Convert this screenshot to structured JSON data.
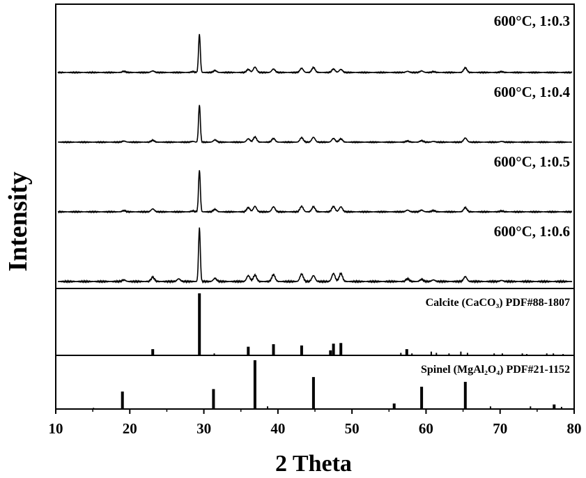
{
  "chart_data": {
    "type": "line",
    "title": "",
    "xlabel": "2 Theta",
    "ylabel": "Intensity",
    "xlim": [
      10,
      80
    ],
    "x_ticks": [
      10,
      20,
      30,
      40,
      50,
      60,
      70,
      80
    ],
    "y_ticks_shown": false,
    "grid": false,
    "legend": "none",
    "colors": {
      "line": "#000000",
      "background": "#ffffff"
    },
    "series": [
      {
        "name": "600°C, 1:0.3",
        "baseline": 0.06,
        "peaks": [
          [
            19.2,
            0.03
          ],
          [
            23.1,
            0.04
          ],
          [
            28.5,
            0.02
          ],
          [
            29.4,
            1.0
          ],
          [
            31.5,
            0.05
          ],
          [
            36.0,
            0.08
          ],
          [
            36.9,
            0.14
          ],
          [
            39.4,
            0.09
          ],
          [
            43.2,
            0.11
          ],
          [
            44.8,
            0.13
          ],
          [
            47.5,
            0.09
          ],
          [
            48.5,
            0.08
          ],
          [
            57.5,
            0.03
          ],
          [
            59.4,
            0.04
          ],
          [
            61.0,
            0.02
          ],
          [
            65.3,
            0.12
          ],
          [
            70.2,
            0.02
          ]
        ]
      },
      {
        "name": "600°C, 1:0.4",
        "baseline": 0.06,
        "peaks": [
          [
            19.2,
            0.03
          ],
          [
            23.1,
            0.05
          ],
          [
            28.5,
            0.02
          ],
          [
            29.4,
            1.0
          ],
          [
            31.5,
            0.06
          ],
          [
            36.0,
            0.09
          ],
          [
            36.9,
            0.14
          ],
          [
            39.4,
            0.1
          ],
          [
            43.2,
            0.12
          ],
          [
            44.8,
            0.13
          ],
          [
            47.5,
            0.1
          ],
          [
            48.5,
            0.09
          ],
          [
            57.5,
            0.03
          ],
          [
            59.4,
            0.04
          ],
          [
            61.0,
            0.02
          ],
          [
            65.3,
            0.11
          ],
          [
            70.2,
            0.02
          ]
        ]
      },
      {
        "name": "600°C, 1:0.5",
        "baseline": 0.06,
        "peaks": [
          [
            19.2,
            0.03
          ],
          [
            23.1,
            0.07
          ],
          [
            28.5,
            0.02
          ],
          [
            29.4,
            1.0
          ],
          [
            31.5,
            0.06
          ],
          [
            36.0,
            0.1
          ],
          [
            36.9,
            0.13
          ],
          [
            39.4,
            0.12
          ],
          [
            43.2,
            0.13
          ],
          [
            44.8,
            0.12
          ],
          [
            47.5,
            0.13
          ],
          [
            48.5,
            0.12
          ],
          [
            57.5,
            0.04
          ],
          [
            59.4,
            0.04
          ],
          [
            61.0,
            0.03
          ],
          [
            65.3,
            0.1
          ],
          [
            70.2,
            0.02
          ]
        ]
      },
      {
        "name": "600°C, 1:0.6",
        "baseline": 0.06,
        "peaks": [
          [
            19.2,
            0.03
          ],
          [
            23.1,
            0.08
          ],
          [
            26.6,
            0.05
          ],
          [
            29.4,
            1.0
          ],
          [
            31.5,
            0.06
          ],
          [
            36.0,
            0.11
          ],
          [
            36.9,
            0.12
          ],
          [
            39.4,
            0.13
          ],
          [
            43.2,
            0.14
          ],
          [
            44.8,
            0.11
          ],
          [
            47.5,
            0.15
          ],
          [
            48.5,
            0.15
          ],
          [
            57.5,
            0.05
          ],
          [
            59.4,
            0.04
          ],
          [
            61.0,
            0.03
          ],
          [
            65.3,
            0.09
          ],
          [
            70.2,
            0.02
          ]
        ]
      }
    ],
    "references": [
      {
        "name": "Calcite (CaCO₃) PDF#88-1807",
        "sticks": [
          [
            23.1,
            9
          ],
          [
            29.4,
            100
          ],
          [
            31.4,
            2
          ],
          [
            36.0,
            13
          ],
          [
            39.4,
            17
          ],
          [
            43.2,
            15
          ],
          [
            47.1,
            7
          ],
          [
            47.5,
            18
          ],
          [
            48.5,
            19
          ],
          [
            56.6,
            3
          ],
          [
            57.4,
            9
          ],
          [
            58.1,
            2
          ],
          [
            60.7,
            5
          ],
          [
            61.4,
            3
          ],
          [
            63.1,
            2
          ],
          [
            64.7,
            5
          ],
          [
            65.6,
            3
          ],
          [
            69.2,
            2
          ],
          [
            70.3,
            2
          ],
          [
            73.0,
            2
          ],
          [
            73.6,
            1
          ],
          [
            76.3,
            2
          ],
          [
            77.2,
            2
          ],
          [
            78.5,
            1
          ]
        ]
      },
      {
        "name": "Spinel (MgAl₂O₄) PDF#21-1152",
        "sticks": [
          [
            15.1,
            1
          ],
          [
            19.0,
            35
          ],
          [
            31.3,
            40
          ],
          [
            36.9,
            100
          ],
          [
            38.6,
            4
          ],
          [
            44.8,
            65
          ],
          [
            55.7,
            10
          ],
          [
            59.4,
            45
          ],
          [
            65.3,
            55
          ],
          [
            68.7,
            4
          ],
          [
            74.1,
            4
          ],
          [
            77.3,
            8
          ],
          [
            78.3,
            3
          ]
        ]
      }
    ]
  }
}
